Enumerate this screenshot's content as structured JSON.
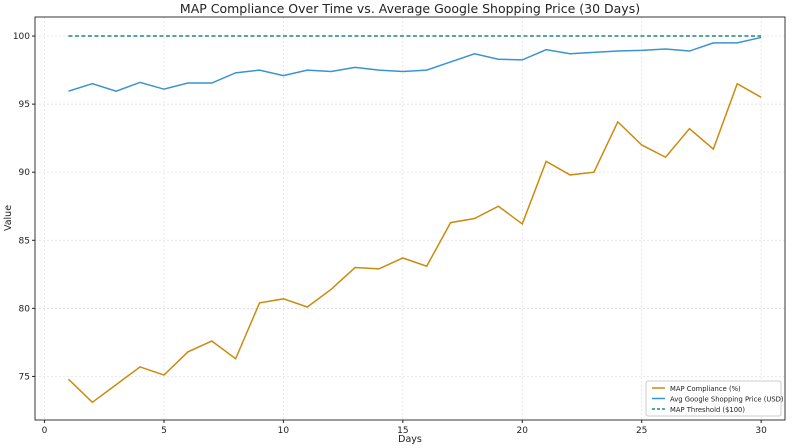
{
  "chart_data": {
    "type": "line",
    "title": "MAP Compliance Over Time vs. Average Google Shopping Price (30 Days)",
    "xlabel": "Days",
    "ylabel": "Value",
    "xlim": [
      -0.4,
      31.0
    ],
    "ylim": [
      71.8,
      101.4
    ],
    "xticks": [
      0,
      5,
      10,
      15,
      20,
      25,
      30
    ],
    "yticks": [
      75,
      80,
      85,
      90,
      95,
      100
    ],
    "grid": true,
    "legend_position": "bottom-right",
    "x": [
      1,
      2,
      3,
      4,
      5,
      6,
      7,
      8,
      9,
      10,
      11,
      12,
      13,
      14,
      15,
      16,
      17,
      18,
      19,
      20,
      21,
      22,
      23,
      24,
      25,
      26,
      27,
      28,
      29,
      30
    ],
    "series": [
      {
        "name": "MAP Compliance (%)",
        "color": "#cc8a0e",
        "dashed": false,
        "values": [
          74.8,
          73.1,
          74.4,
          75.7,
          75.1,
          76.8,
          77.6,
          76.3,
          80.4,
          80.7,
          80.1,
          81.4,
          83.0,
          82.9,
          83.7,
          83.1,
          86.3,
          86.6,
          87.5,
          86.2,
          90.8,
          89.8,
          90.0,
          93.7,
          92.0,
          91.1,
          93.2,
          91.7,
          96.5,
          95.5
        ]
      },
      {
        "name": "Avg Google Shopping Price (USD)",
        "color": "#3a93d0",
        "dashed": false,
        "values": [
          95.95,
          96.5,
          95.95,
          96.6,
          96.1,
          96.55,
          96.55,
          97.3,
          97.5,
          97.1,
          97.5,
          97.4,
          97.7,
          97.5,
          97.4,
          97.5,
          98.1,
          98.7,
          98.3,
          98.25,
          99.0,
          98.7,
          98.8,
          98.9,
          98.95,
          99.05,
          98.9,
          99.5,
          99.5,
          99.9
        ]
      },
      {
        "name": "MAP Threshold ($100)",
        "color": "#1f8a78",
        "dashed": true,
        "values": [
          100,
          100,
          100,
          100,
          100,
          100,
          100,
          100,
          100,
          100,
          100,
          100,
          100,
          100,
          100,
          100,
          100,
          100,
          100,
          100,
          100,
          100,
          100,
          100,
          100,
          100,
          100,
          100,
          100,
          100
        ]
      }
    ]
  }
}
